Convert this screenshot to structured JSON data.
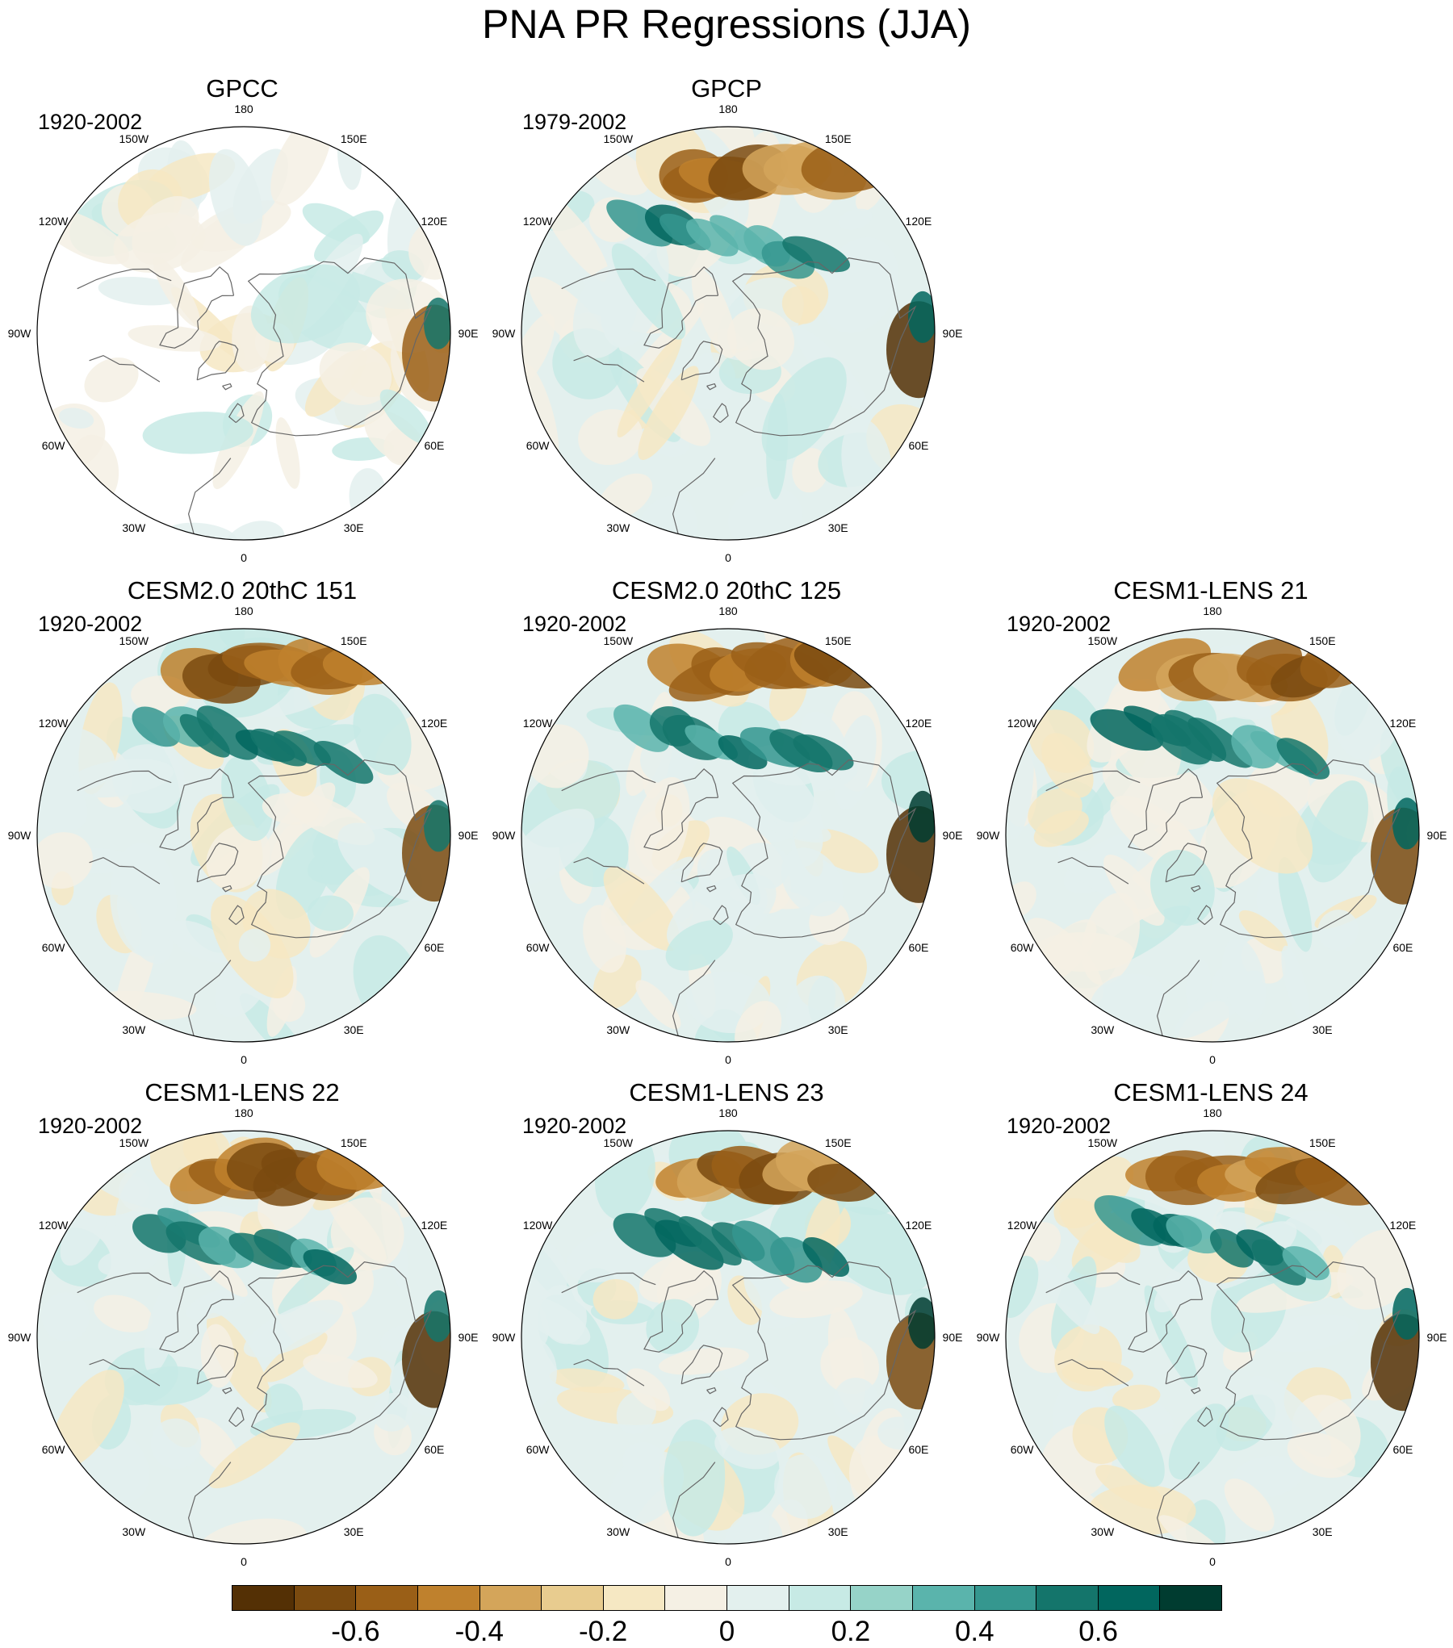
{
  "figure": {
    "title": "PNA PR Regressions (JJA)"
  },
  "panels": [
    {
      "title": "GPCC",
      "period": "1920-2002",
      "mask": true
    },
    {
      "title": "GPCP",
      "period": "1979-2002"
    },
    {
      "title": "CESM2.0 20thC 151",
      "period": "1920-2002"
    },
    {
      "title": "CESM2.0 20thC 125",
      "period": "1920-2002"
    },
    {
      "title": "CESM1-LENS 21",
      "period": "1920-2002"
    },
    {
      "title": "CESM1-LENS 22",
      "period": "1920-2002"
    },
    {
      "title": "CESM1-LENS 23",
      "period": "1920-2002"
    },
    {
      "title": "CESM1-LENS 24",
      "period": "1920-2002"
    }
  ],
  "longitude_labels": [
    "180",
    "150E",
    "120E",
    "90E",
    "60E",
    "30E",
    "0",
    "30W",
    "60W",
    "90W",
    "120W",
    "150W"
  ],
  "colorbar": {
    "colors": [
      "#543005",
      "#7a4a0f",
      "#9a5f17",
      "#bf812d",
      "#d4a55a",
      "#e8cc8f",
      "#f6e8c3",
      "#f5f0e4",
      "#e3f0ee",
      "#c7eae5",
      "#96d3c8",
      "#5ab4ac",
      "#35978f",
      "#14756b",
      "#01665e",
      "#003c30"
    ],
    "tick_labels": [
      "-0.6",
      "-0.4",
      "-0.2",
      "0",
      "0.2",
      "0.4",
      "0.6"
    ],
    "tick_values": [
      -0.6,
      -0.4,
      -0.2,
      0,
      0.2,
      0.4,
      0.6
    ],
    "min": -0.8,
    "max": 0.8
  }
}
